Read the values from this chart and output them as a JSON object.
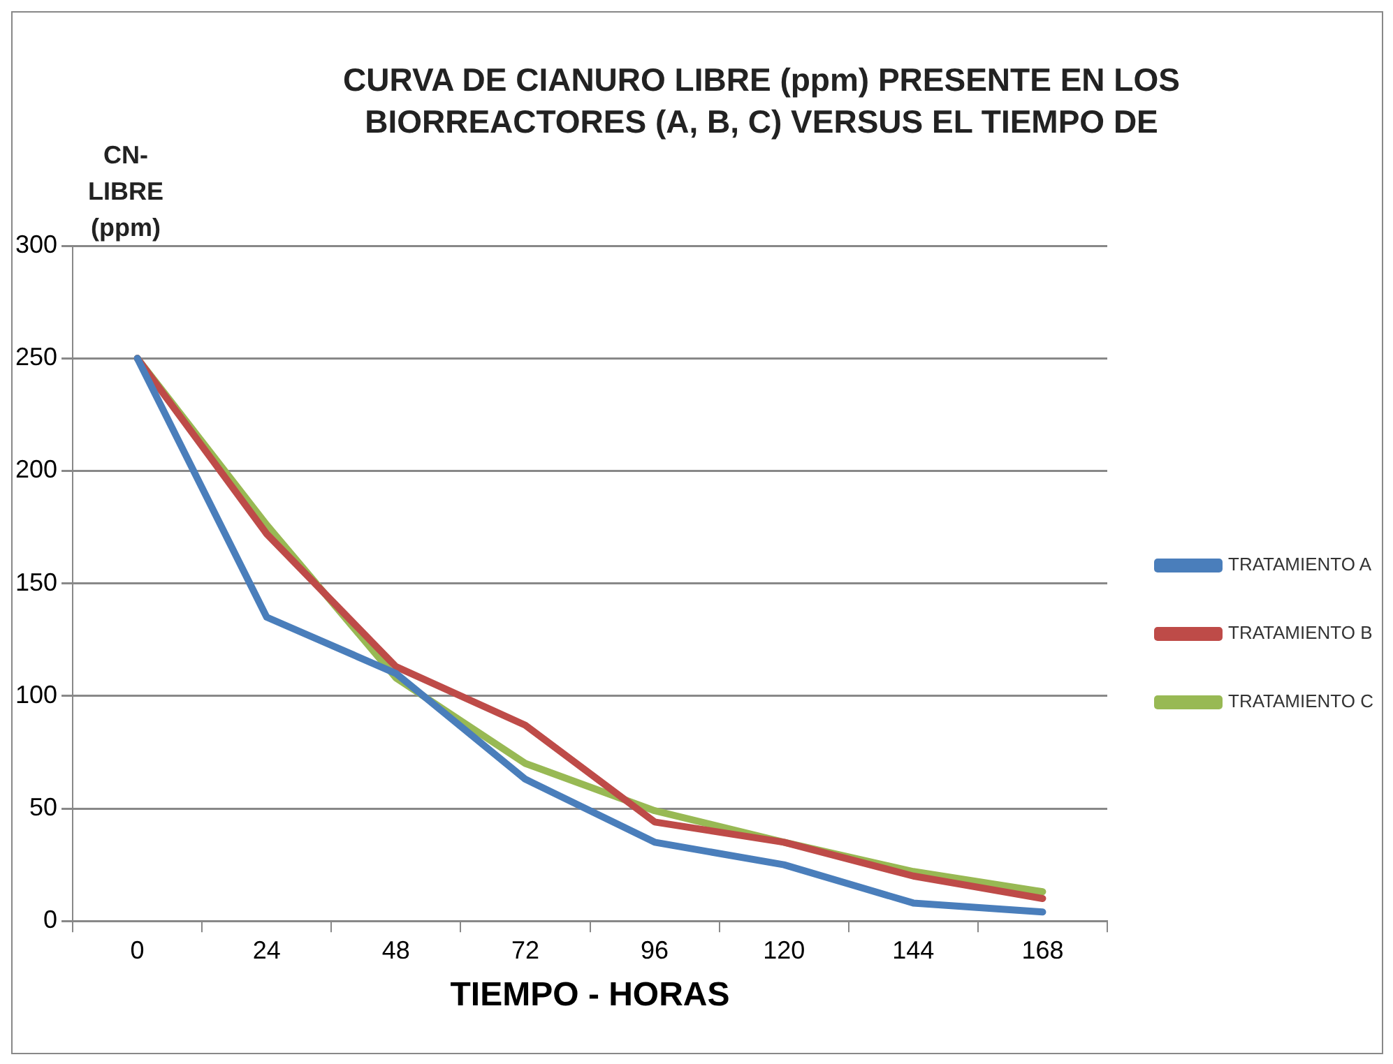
{
  "chart_data": {
    "type": "line",
    "title": "CURVA DE CIANURO LIBRE (ppm)  PRESENTE EN LOS BIORREACTORES (A, B, C) VERSUS EL TIEMPO DE",
    "xlabel": "TIEMPO - HORAS",
    "ylabel": "CN- LIBRE (ppm)",
    "categories": [
      "0",
      "24",
      "48",
      "72",
      "96",
      "120",
      "144",
      "168"
    ],
    "series": [
      {
        "name": "TRATAMIENTO A",
        "color": "#4a7ebb",
        "values": [
          250,
          135,
          110,
          63,
          35,
          25,
          8,
          4
        ]
      },
      {
        "name": "TRATAMIENTO B",
        "color": "#be4b48",
        "values": [
          250,
          172,
          113,
          87,
          44,
          35,
          20,
          10
        ]
      },
      {
        "name": "TRATAMIENTO C",
        "color": "#98b954",
        "values": [
          250,
          176,
          108,
          70,
          49,
          35,
          22,
          13
        ]
      }
    ],
    "ylim": [
      0,
      300
    ],
    "yticks": [
      0,
      50,
      100,
      150,
      200,
      250,
      300
    ],
    "grid": "y",
    "legend": "right",
    "marker": "none",
    "line_style": "solid"
  }
}
